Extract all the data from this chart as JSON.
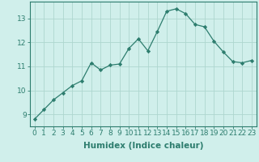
{
  "x": [
    0,
    1,
    2,
    3,
    4,
    5,
    6,
    7,
    8,
    9,
    10,
    11,
    12,
    13,
    14,
    15,
    16,
    17,
    18,
    19,
    20,
    21,
    22,
    23
  ],
  "y": [
    8.8,
    9.2,
    9.6,
    9.9,
    10.2,
    10.4,
    11.15,
    10.85,
    11.05,
    11.1,
    11.75,
    12.15,
    11.65,
    12.45,
    13.3,
    13.4,
    13.2,
    12.75,
    12.65,
    12.05,
    11.6,
    11.2,
    11.15,
    11.25
  ],
  "line_color": "#2d7d6e",
  "marker": "D",
  "marker_size": 2.2,
  "bg_color": "#d0efeb",
  "grid_color": "#aed6cf",
  "xlabel": "Humidex (Indice chaleur)",
  "xlim": [
    -0.5,
    23.5
  ],
  "ylim": [
    8.5,
    13.7
  ],
  "yticks": [
    9,
    10,
    11,
    12,
    13
  ],
  "xticks": [
    0,
    1,
    2,
    3,
    4,
    5,
    6,
    7,
    8,
    9,
    10,
    11,
    12,
    13,
    14,
    15,
    16,
    17,
    18,
    19,
    20,
    21,
    22,
    23
  ],
  "tick_fontsize": 6.5,
  "xlabel_fontsize": 7.5,
  "axis_color": "#2d7d6e",
  "tick_color": "#2d7d6e",
  "spine_color": "#2d7d6e"
}
